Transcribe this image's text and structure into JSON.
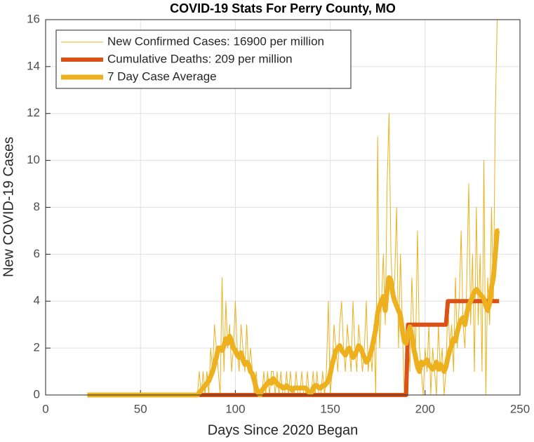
{
  "chart_data": {
    "type": "line",
    "title": "COVID-19 Stats For Perry County, MO",
    "x_label": "Days Since 2020 Began",
    "y_label": "New COVID-19 Cases",
    "xlim": [
      0,
      250
    ],
    "xticks": [
      0,
      50,
      100,
      150,
      200,
      250
    ],
    "ylim": [
      0,
      16
    ],
    "yticks": [
      0,
      2,
      4,
      6,
      8,
      10,
      12,
      14,
      16
    ],
    "grid": true,
    "legend": "upper left",
    "x": [
      22,
      23,
      24,
      25,
      26,
      27,
      28,
      29,
      30,
      31,
      32,
      33,
      34,
      35,
      36,
      37,
      38,
      39,
      40,
      41,
      42,
      43,
      44,
      45,
      46,
      47,
      48,
      49,
      50,
      51,
      52,
      53,
      54,
      55,
      56,
      57,
      58,
      59,
      60,
      61,
      62,
      63,
      64,
      65,
      66,
      67,
      68,
      69,
      70,
      71,
      72,
      73,
      74,
      75,
      76,
      77,
      78,
      79,
      80,
      81,
      82,
      83,
      84,
      85,
      86,
      87,
      88,
      89,
      90,
      91,
      92,
      93,
      94,
      95,
      96,
      97,
      98,
      99,
      100,
      101,
      102,
      103,
      104,
      105,
      106,
      107,
      108,
      109,
      110,
      111,
      112,
      113,
      114,
      115,
      116,
      117,
      118,
      119,
      120,
      121,
      122,
      123,
      124,
      125,
      126,
      127,
      128,
      129,
      130,
      131,
      132,
      133,
      134,
      135,
      136,
      137,
      138,
      139,
      140,
      141,
      142,
      143,
      144,
      145,
      146,
      147,
      148,
      149,
      150,
      151,
      152,
      153,
      154,
      155,
      156,
      157,
      158,
      159,
      160,
      161,
      162,
      163,
      164,
      165,
      166,
      167,
      168,
      169,
      170,
      171,
      172,
      173,
      174,
      175,
      176,
      177,
      178,
      179,
      180,
      181,
      182,
      183,
      184,
      185,
      186,
      187,
      188,
      189,
      190,
      191,
      192,
      193,
      194,
      195,
      196,
      197,
      198,
      199,
      200,
      201,
      202,
      203,
      204,
      205,
      206,
      207,
      208,
      209,
      210,
      211,
      212,
      213,
      214,
      215,
      216,
      217,
      218,
      219,
      220,
      221,
      222,
      223,
      224,
      225,
      226,
      227,
      228,
      229,
      230,
      231,
      232,
      233,
      234,
      235,
      236,
      237,
      238,
      239
    ],
    "series": [
      {
        "name": "New Confirmed Cases: 16900 per million",
        "color": "#EDB120",
        "line_width": 1,
        "values": [
          0,
          0,
          0,
          0,
          0,
          0,
          0,
          0,
          0,
          0,
          0,
          0,
          0,
          0,
          0,
          0,
          0,
          0,
          0,
          0,
          0,
          0,
          0,
          0,
          0,
          0,
          0,
          0,
          0,
          0,
          0,
          0,
          0,
          0,
          0,
          0,
          0,
          0,
          0,
          0,
          0,
          0,
          0,
          0,
          0,
          0,
          0,
          0,
          0,
          0,
          0,
          0,
          0,
          0,
          0,
          0,
          0,
          0,
          0,
          1,
          0,
          1,
          0,
          1,
          0,
          2,
          1,
          3,
          2,
          1,
          0,
          5,
          1,
          4,
          2,
          3,
          1,
          2,
          4,
          2,
          1,
          3,
          2,
          1,
          3,
          1,
          2,
          1,
          0,
          1,
          0,
          0,
          0,
          1,
          0,
          1,
          0,
          1,
          1,
          0,
          1,
          0,
          1,
          0,
          0,
          1,
          0,
          1,
          0,
          0,
          1,
          0,
          0,
          1,
          0,
          0,
          1,
          0,
          0,
          1,
          0,
          1,
          0,
          0,
          1,
          0,
          1,
          4,
          0,
          1,
          3,
          2,
          1,
          3,
          4,
          2,
          1,
          3,
          2,
          1,
          4,
          2,
          1,
          3,
          2,
          1,
          2,
          4,
          1,
          2,
          1,
          3,
          0,
          11,
          2,
          4,
          6,
          3,
          9,
          12,
          6,
          4,
          5,
          8,
          2,
          6,
          3,
          0,
          2,
          3,
          1,
          5,
          3,
          2,
          7,
          2,
          1,
          0,
          2,
          1,
          3,
          0,
          2,
          1,
          0,
          3,
          1,
          2,
          0,
          1,
          4,
          2,
          3,
          1,
          5,
          2,
          4,
          7,
          3,
          2,
          5,
          9,
          3,
          6,
          1,
          8,
          3,
          6,
          1,
          10,
          0,
          5,
          3,
          8,
          4,
          12,
          16,
          16
        ]
      },
      {
        "name": "Cumulative Deaths: 209 per million",
        "color": "#D95319",
        "line_width": 6,
        "values": [
          0,
          0,
          0,
          0,
          0,
          0,
          0,
          0,
          0,
          0,
          0,
          0,
          0,
          0,
          0,
          0,
          0,
          0,
          0,
          0,
          0,
          0,
          0,
          0,
          0,
          0,
          0,
          0,
          0,
          0,
          0,
          0,
          0,
          0,
          0,
          0,
          0,
          0,
          0,
          0,
          0,
          0,
          0,
          0,
          0,
          0,
          0,
          0,
          0,
          0,
          0,
          0,
          0,
          0,
          0,
          0,
          0,
          0,
          0,
          0,
          0,
          0,
          0,
          0,
          0,
          0,
          0,
          0,
          0,
          0,
          0,
          0,
          0,
          0,
          0,
          0,
          0,
          0,
          0,
          0,
          0,
          0,
          0,
          0,
          0,
          0,
          0,
          0,
          0,
          0,
          0,
          0,
          0,
          0,
          0,
          0,
          0,
          0,
          0,
          0,
          0,
          0,
          0,
          0,
          0,
          0,
          0,
          0,
          0,
          0,
          0,
          0,
          0,
          0,
          0,
          0,
          0,
          0,
          0,
          0,
          0,
          0,
          0,
          0,
          0,
          0,
          0,
          0,
          0,
          0,
          0,
          0,
          0,
          0,
          0,
          0,
          0,
          0,
          0,
          0,
          0,
          0,
          0,
          0,
          0,
          0,
          0,
          0,
          0,
          0,
          0,
          0,
          0,
          0,
          0,
          0,
          0,
          0,
          0,
          0,
          0,
          0,
          0,
          0,
          0,
          0,
          0,
          0,
          0,
          3,
          3,
          3,
          3,
          3,
          3,
          3,
          3,
          3,
          3,
          3,
          3,
          3,
          3,
          3,
          3,
          3,
          3,
          3,
          3,
          3,
          4,
          4,
          4,
          4,
          4,
          4,
          4,
          4,
          4,
          4,
          4,
          4,
          4,
          4,
          4,
          4,
          4,
          4,
          4,
          4,
          4,
          4,
          4,
          4,
          4,
          4,
          4,
          4
        ]
      },
      {
        "name": "7 Day Case Average",
        "color": "#EDB120",
        "line_width": 7,
        "values": [
          0,
          0,
          0,
          0,
          0,
          0,
          0,
          0,
          0,
          0,
          0,
          0,
          0,
          0,
          0,
          0,
          0,
          0,
          0,
          0,
          0,
          0,
          0,
          0,
          0,
          0,
          0,
          0,
          0,
          0,
          0,
          0,
          0,
          0,
          0,
          0,
          0,
          0,
          0,
          0,
          0,
          0,
          0,
          0,
          0,
          0,
          0,
          0,
          0,
          0,
          0,
          0,
          0,
          0,
          0,
          0,
          0,
          0,
          0,
          0.1,
          0.2,
          0.3,
          0.4,
          0.5,
          0.6,
          0.8,
          1,
          1.3,
          1.6,
          2,
          2,
          1.9,
          2.1,
          2.4,
          2.2,
          2.5,
          2.3,
          2,
          1.9,
          1.7,
          1.6,
          1.8,
          1.5,
          1.3,
          1.4,
          1.3,
          1,
          0.9,
          0.6,
          0.3,
          0.1,
          0,
          0.2,
          0.3,
          0.4,
          0.5,
          0.6,
          0.5,
          0.7,
          0.6,
          0.5,
          0.4,
          0.4,
          0.3,
          0.3,
          0.4,
          0.3,
          0.3,
          0.2,
          0.3,
          0.3,
          0.3,
          0.3,
          0.3,
          0.3,
          0.3,
          0.2,
          0.1,
          0.1,
          0.3,
          0.4,
          0.4,
          0.3,
          0.3,
          0.4,
          0.4,
          0.5,
          0.6,
          0.9,
          1.3,
          1.6,
          1.9,
          2,
          2.1,
          1.9,
          1.8,
          1.7,
          1.9,
          2,
          1.8,
          1.6,
          1.7,
          1.9,
          2.1,
          2,
          1.8,
          1.6,
          1.4,
          1.5,
          1.7,
          2,
          2.4,
          2.8,
          3.5,
          3.8,
          4,
          4.2,
          3.6,
          4.5,
          5,
          4.9,
          4.3,
          4,
          3.8,
          3.6,
          3.4,
          2.8,
          2.3,
          2.2,
          2.6,
          2.9,
          2.5,
          2,
          1.6,
          1.2,
          1,
          1.4,
          1.3,
          1.4,
          1.5,
          1.3,
          1.2,
          1.1,
          1.2,
          1.4,
          1.1,
          1.3,
          1.2,
          1,
          1.2,
          1.6,
          1.9,
          2.1,
          2.4,
          2.3,
          2.7,
          3,
          3.2,
          3.3,
          3,
          3.5,
          3.8,
          4,
          4.2,
          4.4,
          4.5,
          4.4,
          4.3,
          4.2,
          4.1,
          3.8,
          3.6,
          3.9,
          4.6,
          5,
          6,
          7,
          7
        ]
      }
    ]
  }
}
